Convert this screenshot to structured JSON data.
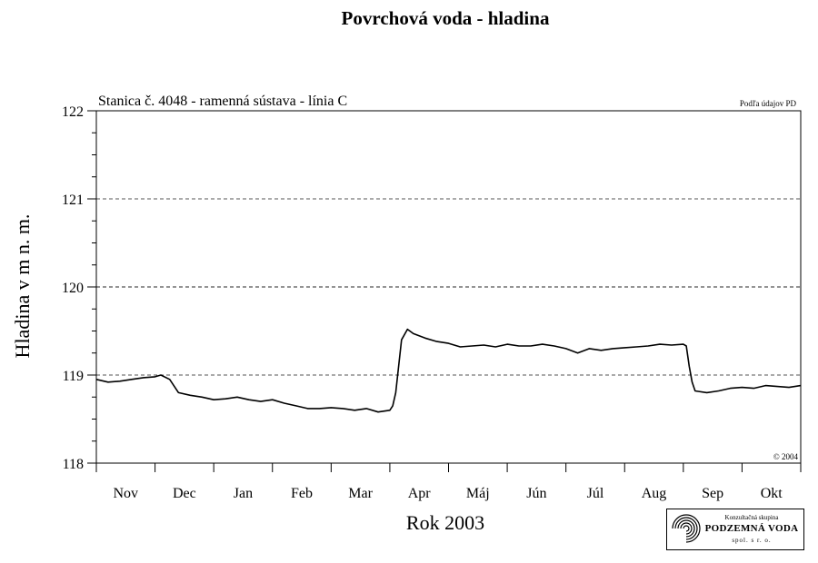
{
  "chart_data": {
    "type": "line",
    "title": "Povrchová voda - hladina",
    "subtitle": "Stanica č. 4048 - ramenná sústava - línia C",
    "source_note": "Podľa údajov PD",
    "copyright": "© 2004",
    "xlabel": "Rok 2003",
    "ylabel": "Hladina v m n. m.",
    "ylim": [
      118,
      122
    ],
    "yticks": [
      118,
      119,
      120,
      121,
      122
    ],
    "months": [
      "Nov",
      "Dec",
      "Jan",
      "Feb",
      "Mar",
      "Apr",
      "Máj",
      "Jún",
      "Júl",
      "Aug",
      "Sep",
      "Okt"
    ],
    "grid": "horizontal dashed at 119, 120, 121",
    "series": [
      {
        "color": "#000000",
        "x": [
          0.0,
          0.2,
          0.4,
          0.6,
          0.8,
          1.0,
          1.1,
          1.25,
          1.4,
          1.6,
          1.8,
          2.0,
          2.2,
          2.4,
          2.6,
          2.8,
          3.0,
          3.2,
          3.4,
          3.6,
          3.8,
          4.0,
          4.2,
          4.4,
          4.6,
          4.8,
          5.0,
          5.05,
          5.1,
          5.15,
          5.2,
          5.3,
          5.4,
          5.6,
          5.8,
          6.0,
          6.2,
          6.4,
          6.6,
          6.8,
          7.0,
          7.2,
          7.4,
          7.6,
          7.8,
          8.0,
          8.2,
          8.4,
          8.6,
          8.8,
          9.0,
          9.2,
          9.4,
          9.6,
          9.8,
          10.0,
          10.05,
          10.1,
          10.15,
          10.2,
          10.4,
          10.6,
          10.8,
          11.0,
          11.2,
          11.4,
          11.6,
          11.8,
          12.0
        ],
        "y": [
          118.95,
          118.92,
          118.93,
          118.95,
          118.97,
          118.98,
          119.0,
          118.95,
          118.8,
          118.77,
          118.75,
          118.72,
          118.73,
          118.75,
          118.72,
          118.7,
          118.72,
          118.68,
          118.65,
          118.62,
          118.62,
          118.63,
          118.62,
          118.6,
          118.62,
          118.58,
          118.6,
          118.65,
          118.8,
          119.1,
          119.4,
          119.52,
          119.47,
          119.42,
          119.38,
          119.36,
          119.32,
          119.33,
          119.34,
          119.32,
          119.35,
          119.33,
          119.33,
          119.35,
          119.33,
          119.3,
          119.25,
          119.3,
          119.28,
          119.3,
          119.31,
          119.32,
          119.33,
          119.35,
          119.34,
          119.35,
          119.33,
          119.1,
          118.92,
          118.82,
          118.8,
          118.82,
          118.85,
          118.86,
          118.85,
          118.88,
          118.87,
          118.86,
          118.88
        ]
      }
    ]
  },
  "logo": {
    "top": "Konzultačná skupina",
    "main": "PODZEMNÁ VODA",
    "bottom": "spol. s r. o."
  }
}
